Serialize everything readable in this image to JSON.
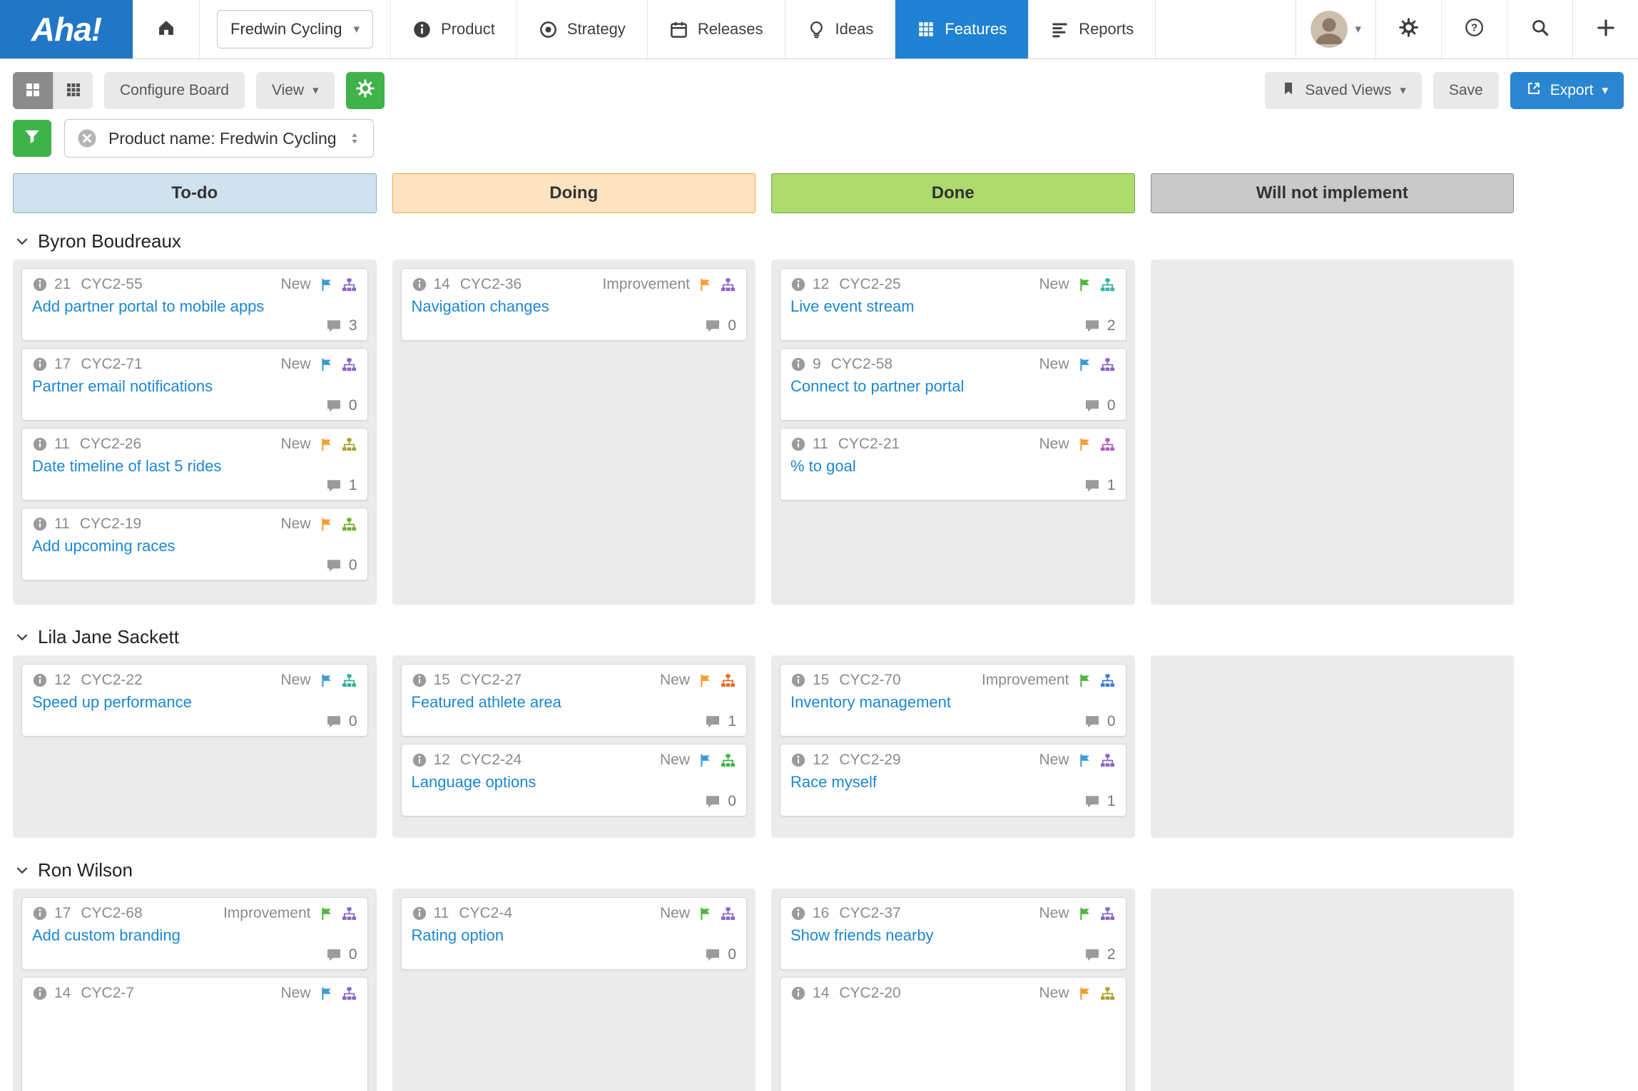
{
  "nav": {
    "logo": "Aha!",
    "product_selector": {
      "label": "Fredwin Cycling"
    },
    "items": [
      {
        "label": "Product"
      },
      {
        "label": "Strategy"
      },
      {
        "label": "Releases"
      },
      {
        "label": "Ideas"
      },
      {
        "label": "Features"
      },
      {
        "label": "Reports"
      }
    ]
  },
  "toolbar": {
    "configure_board_label": "Configure Board",
    "view_label": "View",
    "saved_views_label": "Saved Views",
    "save_label": "Save",
    "export_label": "Export"
  },
  "filter": {
    "pill_text": "Product name: Fredwin Cycling"
  },
  "columns": [
    {
      "label": "To-do",
      "bg": "#cfe2ed",
      "border": "#85b1ca"
    },
    {
      "label": "Doing",
      "bg": "#fce3c1",
      "border": "#eea443"
    },
    {
      "label": "Done",
      "bg": "#aeda6e",
      "border": "#74a83b"
    },
    {
      "label": "Will not implement",
      "bg": "#c9c9c9",
      "border": "#8f8f8f"
    }
  ],
  "colors": {
    "brand_blue": "#2177c6",
    "active_tab_blue": "#1f82d3",
    "button_green": "#3fb34a",
    "export_blue": "#2b86d2",
    "link_blue": "#1d87d2"
  },
  "lanes": [
    {
      "name": "Byron Boudreaux",
      "columns": [
        [
          {
            "score": 21,
            "ref": "CYC2-55",
            "kind": "New",
            "flag": "#3e9ad6",
            "org": "#8a63c9",
            "title": "Add partner portal to mobile apps",
            "comments": 3
          },
          {
            "score": 17,
            "ref": "CYC2-71",
            "kind": "New",
            "flag": "#3e9ad6",
            "org": "#8a63c9",
            "title": "Partner email notifications",
            "comments": 0
          },
          {
            "score": 11,
            "ref": "CYC2-26",
            "kind": "New",
            "flag": "#f79d33",
            "org": "#aba12f",
            "title": "Date timeline of last 5 rides",
            "comments": 1
          },
          {
            "score": 11,
            "ref": "CYC2-19",
            "kind": "New",
            "flag": "#f79d33",
            "org": "#6fae2e",
            "title": "Add upcoming races",
            "comments": 0
          }
        ],
        [
          {
            "score": 14,
            "ref": "CYC2-36",
            "kind": "Improvement",
            "flag": "#f79d33",
            "org": "#8a63c9",
            "title": "Navigation changes",
            "comments": 0
          }
        ],
        [
          {
            "score": 12,
            "ref": "CYC2-25",
            "kind": "New",
            "flag": "#52b53f",
            "org": "#2fb3a6",
            "title": "Live event stream",
            "comments": 2
          },
          {
            "score": 9,
            "ref": "CYC2-58",
            "kind": "New",
            "flag": "#3e9ad6",
            "org": "#8a63c9",
            "title": "Connect to partner portal",
            "comments": 0
          },
          {
            "score": 11,
            "ref": "CYC2-21",
            "kind": "New",
            "flag": "#f79d33",
            "org": "#b15ec6",
            "title": "% to goal",
            "comments": 1
          }
        ],
        []
      ]
    },
    {
      "name": "Lila Jane Sackett",
      "columns": [
        [
          {
            "score": 12,
            "ref": "CYC2-22",
            "kind": "New",
            "flag": "#3e9ad6",
            "org": "#2fb39a",
            "title": "Speed up performance",
            "comments": 0
          }
        ],
        [
          {
            "score": 15,
            "ref": "CYC2-27",
            "kind": "New",
            "flag": "#f79d33",
            "org": "#e06b2c",
            "title": "Featured athlete area",
            "comments": 1
          },
          {
            "score": 12,
            "ref": "CYC2-24",
            "kind": "New",
            "flag": "#3e9ad6",
            "org": "#3fb44a",
            "title": "Language options",
            "comments": 0
          }
        ],
        [
          {
            "score": 15,
            "ref": "CYC2-70",
            "kind": "Improvement",
            "flag": "#52b53f",
            "org": "#3f7fd3",
            "title": "Inventory management",
            "comments": 0
          },
          {
            "score": 12,
            "ref": "CYC2-29",
            "kind": "New",
            "flag": "#3e9ad6",
            "org": "#8a63c9",
            "title": "Race myself",
            "comments": 1
          }
        ],
        []
      ]
    },
    {
      "name": "Ron Wilson",
      "columns": [
        [
          {
            "score": 17,
            "ref": "CYC2-68",
            "kind": "Improvement",
            "flag": "#52b53f",
            "org": "#8a63c9",
            "title": "Add custom branding",
            "comments": 0
          },
          {
            "score": 14,
            "ref": "CYC2-7",
            "kind": "New",
            "flag": "#3e9ad6",
            "org": "#8a63c9"
          }
        ],
        [
          {
            "score": 11,
            "ref": "CYC2-4",
            "kind": "New",
            "flag": "#52b53f",
            "org": "#8a63c9",
            "title": "Rating option",
            "comments": 0
          }
        ],
        [
          {
            "score": 16,
            "ref": "CYC2-37",
            "kind": "New",
            "flag": "#52b53f",
            "org": "#8a63c9",
            "title": "Show friends nearby",
            "comments": 2
          },
          {
            "score": 14,
            "ref": "CYC2-20",
            "kind": "New",
            "flag": "#f79d33",
            "org": "#aba12f"
          }
        ],
        []
      ]
    }
  ]
}
